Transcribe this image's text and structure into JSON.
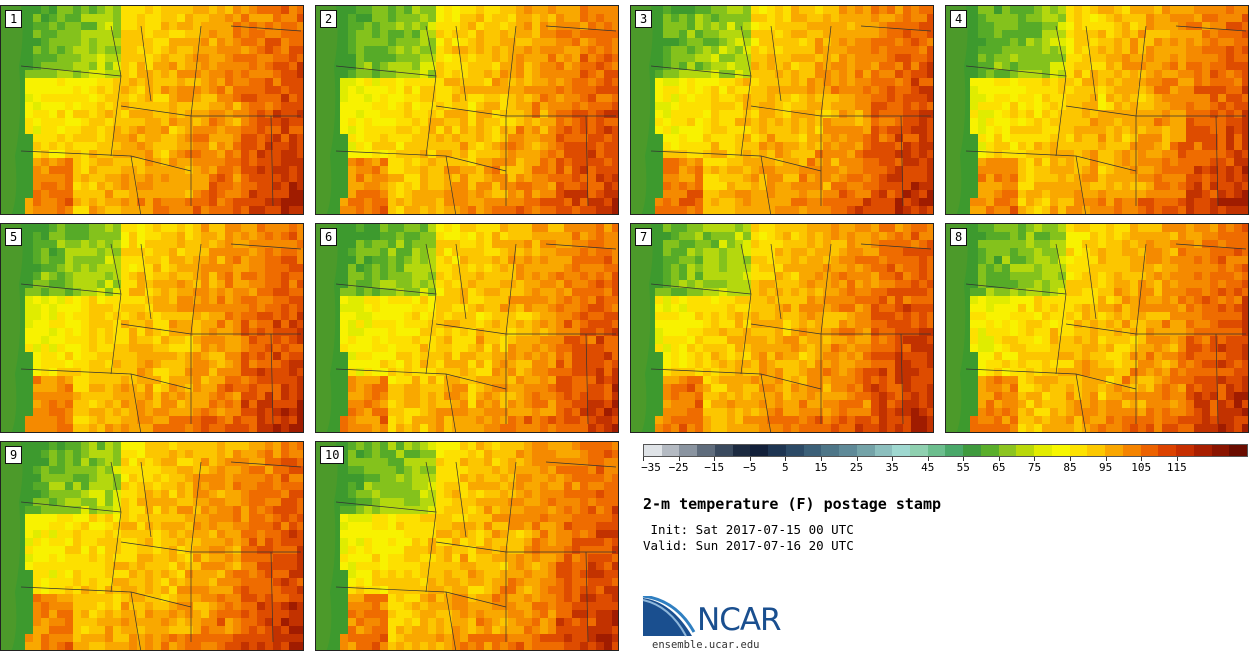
{
  "stamps": [
    {
      "label": "1",
      "seed": 11,
      "heat": 0.55
    },
    {
      "label": "2",
      "seed": 23,
      "heat": 0.45
    },
    {
      "label": "3",
      "seed": 37,
      "heat": 0.55
    },
    {
      "label": "4",
      "seed": 41,
      "heat": 0.5
    },
    {
      "label": "5",
      "seed": 53,
      "heat": 0.5
    },
    {
      "label": "6",
      "seed": 67,
      "heat": 0.42
    },
    {
      "label": "7",
      "seed": 71,
      "heat": 0.6
    },
    {
      "label": "8",
      "seed": 83,
      "heat": 0.5
    },
    {
      "label": "9",
      "seed": 97,
      "heat": 0.48
    },
    {
      "label": "10",
      "seed": 101,
      "heat": 0.52
    }
  ],
  "colorbar": {
    "colors": [
      "#dfe3e7",
      "#b4bac2",
      "#8a94a0",
      "#5f6c7c",
      "#3a4a5e",
      "#1c2a40",
      "#12203a",
      "#1e3552",
      "#2c4a66",
      "#3c6078",
      "#4e7688",
      "#5f8a98",
      "#74a3a8",
      "#8cbfbe",
      "#9fd8d0",
      "#8fd0b0",
      "#6cbe8e",
      "#4aa86a",
      "#3f9a3e",
      "#5aae2c",
      "#8cc420",
      "#b9d80a",
      "#e2ec00",
      "#f7f700",
      "#fde200",
      "#fcc800",
      "#f9a600",
      "#f58400",
      "#ec6200",
      "#dc4200",
      "#c62e00",
      "#a81e00",
      "#8a1400",
      "#6a0c00"
    ],
    "ticks": [
      "−35",
      "−25",
      "−15",
      "−5",
      "5",
      "15",
      "25",
      "35",
      "45",
      "55",
      "65",
      "75",
      "85",
      "95",
      "105",
      "115"
    ]
  },
  "title": "2-m temperature (F) postage stamp",
  "init": " Init: Sat 2017-07-15 00 UTC",
  "valid": "Valid: Sun 2017-07-16 20 UTC",
  "logo": {
    "text": "NCAR",
    "colors": [
      "#1a4f8f",
      "#2f7fc1",
      "#8fb8dc"
    ]
  },
  "site": "ensemble.ucar.edu"
}
